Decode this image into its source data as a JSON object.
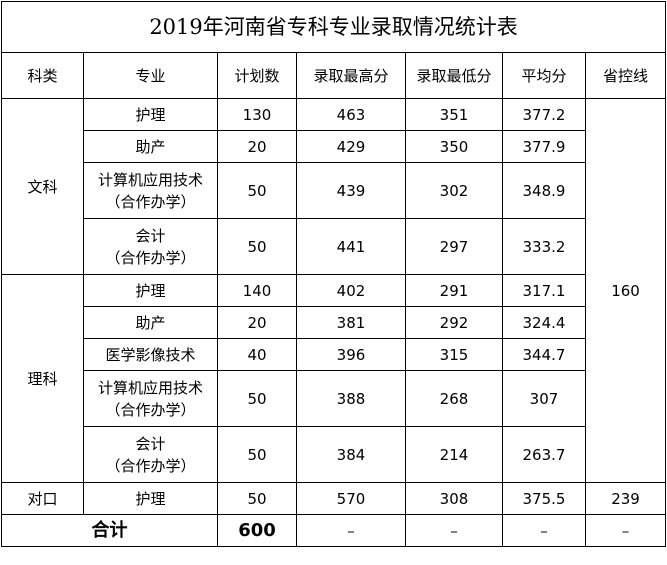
{
  "title": "2019年河南省专科专业录取情况统计表",
  "headers": [
    "科类",
    "专业",
    "计划数",
    "录取最高分",
    "录取最低分",
    "平均分",
    "省控线"
  ],
  "groups": [
    {
      "category": "文科",
      "rows": [
        {
          "major": [
            "护理"
          ],
          "plan": "130",
          "max": "463",
          "min": "351",
          "avg": "377.2"
        },
        {
          "major": [
            "助产"
          ],
          "plan": "20",
          "max": "429",
          "min": "350",
          "avg": "377.9"
        },
        {
          "major": [
            "计算机应用技术",
            "（合作办学）"
          ],
          "plan": "50",
          "max": "439",
          "min": "302",
          "avg": "348.9"
        },
        {
          "major": [
            "会计",
            "（合作办学）"
          ],
          "plan": "50",
          "max": "441",
          "min": "297",
          "avg": "333.2"
        }
      ]
    },
    {
      "category": "理科",
      "rows": [
        {
          "major": [
            "护理"
          ],
          "plan": "140",
          "max": "402",
          "min": "291",
          "avg": "317.1"
        },
        {
          "major": [
            "助产"
          ],
          "plan": "20",
          "max": "381",
          "min": "292",
          "avg": "324.4"
        },
        {
          "major": [
            "医学影像技术"
          ],
          "plan": "40",
          "max": "396",
          "min": "315",
          "avg": "344.7"
        },
        {
          "major": [
            "计算机应用技术",
            "（合作办学）"
          ],
          "plan": "50",
          "max": "388",
          "min": "268",
          "avg": "307"
        },
        {
          "major": [
            "会计",
            "（合作办学）"
          ],
          "plan": "50",
          "max": "384",
          "min": "214",
          "avg": "263.7"
        }
      ]
    },
    {
      "category": "对口",
      "rows": [
        {
          "major": [
            "护理"
          ],
          "plan": "50",
          "max": "570",
          "min": "308",
          "avg": "375.5"
        }
      ]
    }
  ],
  "control_line_shared": "160",
  "control_line_duikou": "239",
  "total": {
    "label": "合计",
    "plan": "600",
    "max": "–",
    "min": "–",
    "avg": "–",
    "control": "–"
  }
}
